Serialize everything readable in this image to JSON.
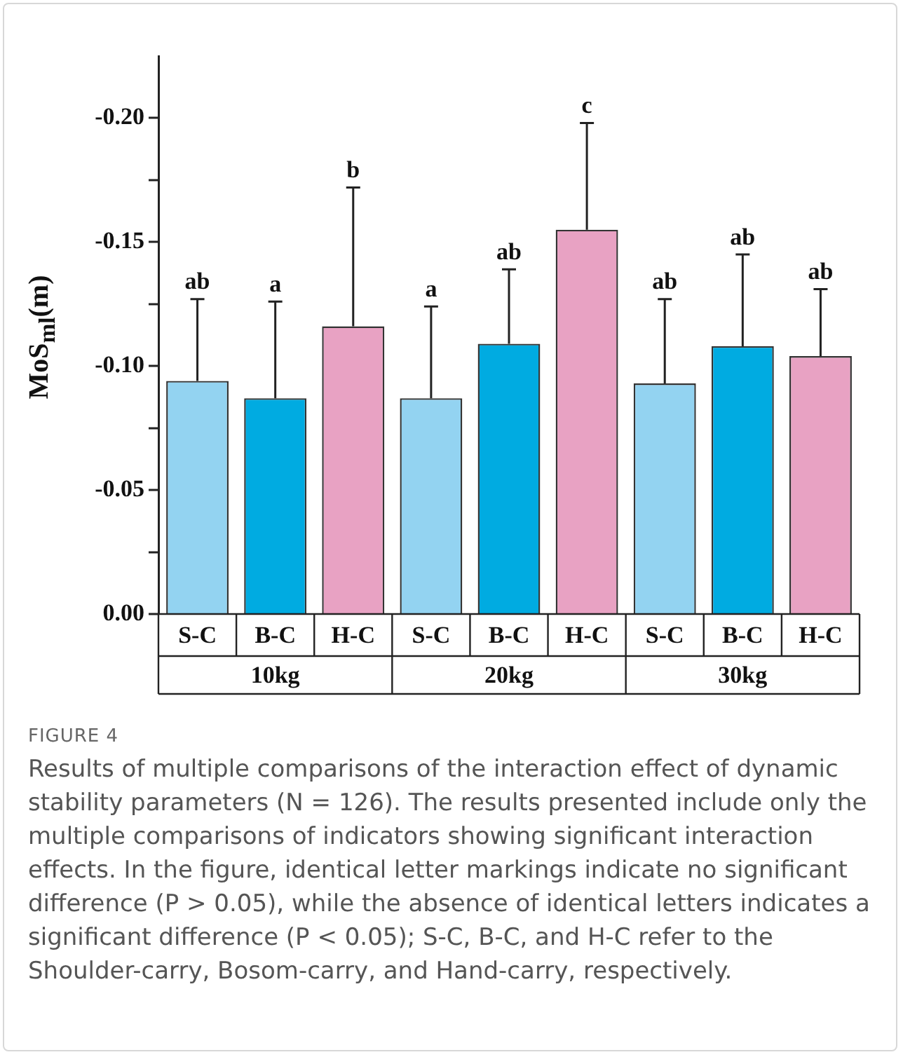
{
  "chart_data": {
    "type": "bar",
    "title": "FIGURE 4",
    "ylabel": "MoS$_{ml}$(m)",
    "categories": [
      "S-C",
      "B-C",
      "H-C",
      "S-C",
      "B-C",
      "H-C",
      "S-C",
      "B-C",
      "H-C"
    ],
    "values": [
      -0.094,
      -0.087,
      -0.116,
      -0.087,
      -0.109,
      -0.155,
      -0.093,
      -0.108,
      -0.104
    ],
    "colors": [
      "#93d3f1",
      "#00abe1",
      "#e8a2c3",
      "#93d3f1",
      "#00abe1",
      "#e8a2c3",
      "#93d3f1",
      "#00abe1",
      "#e8a2c3"
    ],
    "errors": [
      [
        -0.094,
        -0.127
      ],
      [
        -0.087,
        -0.126
      ],
      [
        -0.116,
        -0.172
      ],
      [
        -0.087,
        -0.124
      ],
      [
        -0.109,
        -0.139
      ],
      [
        -0.155,
        -0.198
      ],
      [
        -0.093,
        -0.127
      ],
      [
        -0.108,
        -0.145
      ],
      [
        -0.104,
        -0.131
      ]
    ],
    "ylim": [
      0,
      -0.225
    ],
    "yticks": [
      {
        "value": 0,
        "label": "0.00"
      },
      {
        "value": -0.025,
        "label": null
      },
      {
        "value": -0.05,
        "label": "-0.05"
      },
      {
        "value": -0.075,
        "label": null
      },
      {
        "value": -0.1,
        "label": "-0.10"
      },
      {
        "value": -0.125,
        "label": null
      },
      {
        "value": -0.15,
        "label": "-0.15"
      },
      {
        "value": -0.175,
        "label": null
      },
      {
        "value": -0.2,
        "label": "-0.20"
      }
    ],
    "annotations": [
      "ab",
      "a",
      "b",
      "a",
      "ab",
      "c",
      "ab",
      "ab",
      "ab",
      "10kg",
      "20kg",
      "30kg",
      "Results of multiple comparisons of the interaction effect of dynamic stability parameters (N = 126). The results presented include only the multiple comparisons of indicators showing significant interaction effects. In the figure, identical letter markings indicate no significant difference (P > 0.05), while the absence of identical letters indicates a significant difference (P < 0.05); S-C, B-C, and H-C refer to the Shoulder-carry, Bosom-carry, and Hand-carry, respectively."
    ],
    "grid": false,
    "legend": false
  }
}
